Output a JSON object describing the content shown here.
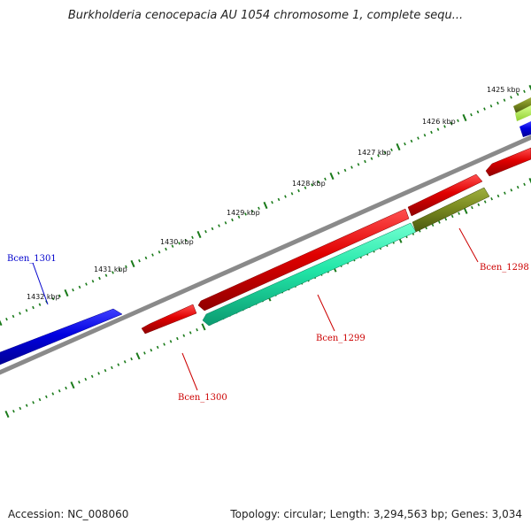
{
  "title": "Burkholderia cenocepacia AU 1054 chromosome 1, complete sequ...",
  "footer": {
    "accession": "Accession: NC_008060",
    "summary": "Topology: circular; Length: 3,294,563 bp; Genes: 3,034"
  },
  "colors": {
    "backbone": "#8a8a8a",
    "ticks": "#1a7a1a",
    "gene_red": "#e00000",
    "gene_blue": "#0000e0",
    "gene_teal": "#22e6a8",
    "gene_olive": "#7a8a20",
    "gene_lime": "#aaf040",
    "label_red": "#cc0000",
    "label_blue": "#0000cc"
  },
  "scale_labels": [
    "1425 kbp",
    "1426 kbp",
    "1427 kbp",
    "1428 kbp",
    "1429 kbp",
    "1430 kbp",
    "1431 kbp",
    "1432 kbp"
  ],
  "gene_labels": [
    {
      "name": "Bcen_1301",
      "color": "blue"
    },
    {
      "name": "Bcen_1300",
      "color": "red"
    },
    {
      "name": "Bcen_1299",
      "color": "red"
    },
    {
      "name": "Bcen_1298",
      "color": "red"
    }
  ]
}
